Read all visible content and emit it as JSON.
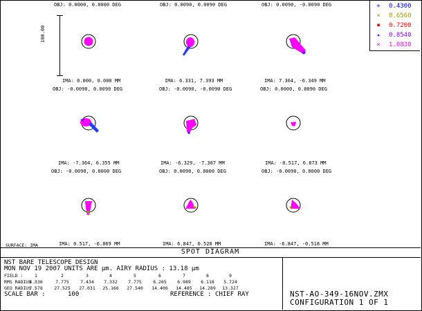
{
  "legend": {
    "entries": [
      {
        "marker": "+",
        "label": "0.4300",
        "color": "#0000ff"
      },
      {
        "marker": "×",
        "label": "0.6560",
        "color": "#9a9a00"
      },
      {
        "marker": "■",
        "label": "0.7200",
        "color": "#ff0000"
      },
      {
        "marker": "▲",
        "label": "0.8540",
        "color": "#8000ff"
      },
      {
        "marker": "×",
        "label": "1.0830",
        "color": "#ff00ff"
      }
    ]
  },
  "scale_bar_label": "100.00",
  "surface_label": "SURFACE: IMA",
  "fields": [
    {
      "obj": "OBJ: 0.0000, 0.0000 DEG",
      "ima": "IMA: 0.000, 0.000 MM",
      "spot": "round"
    },
    {
      "obj": "OBJ: 0.0090, 0.0090 DEG",
      "ima": "IMA: 6.331, 7.393 MM",
      "spot": "tail-sw"
    },
    {
      "obj": "OBJ: 0.0090, -0.0090 DEG",
      "ima": "IMA: 7.364, -6.349 MM",
      "spot": "tail-se"
    },
    {
      "obj": "OBJ: -0.0090, 0.0090 DEG",
      "ima": "IMA: -7.364, 6.355 MM",
      "spot": "tail-e"
    },
    {
      "obj": "OBJ: -0.0090, -0.0090 DEG",
      "ima": "IMA: -6.329, -7.387 MM",
      "spot": "tail-s"
    },
    {
      "obj": "OBJ: 0.0000, 0.0090 DEG",
      "ima": "IMA: -0.517, 6.873 MM",
      "spot": "small"
    },
    {
      "obj": "OBJ: -0.0090, 0.0000 DEG",
      "ima": "IMA: 0.517, -6.869 MM",
      "spot": "tall"
    },
    {
      "obj": "OBJ: 0.0090, 0.0000 DEG",
      "ima": "IMA: 6.847, 0.520 MM",
      "spot": "wedge-l"
    },
    {
      "obj": "OBJ: -0.0090, 0.0000 DEG",
      "ima": "IMA: -6.847, -0.518 MM",
      "spot": "wedge-r"
    }
  ],
  "diagram_title": "SPOT DIAGRAM",
  "info": {
    "line1": "NST BARE TELESCOPE DESIGN",
    "line2": "MON NOV 19 2007  UNITS ARE µm.   AIRY RADIUS : 13.18 µm",
    "field_label": "FIELD       :",
    "rms_label": "RMS RADIUS :",
    "geo_label": "GEO RADIUS :",
    "scale_label": "SCALE BAR   :",
    "field_numbers": [
      "1",
      "2",
      "3",
      "4",
      "5",
      "6",
      "7",
      "8",
      "9"
    ],
    "rms_values": [
      "4.336",
      "7.775",
      "7.434",
      "7.332",
      "7.775",
      "6.265",
      "6.989",
      "6.118",
      "5.724"
    ],
    "geo_values": [
      "7.578",
      "27.525",
      "27.031",
      "25.166",
      "27.540",
      "14.406",
      "14.485",
      "14.289",
      "13.327"
    ],
    "scale_value": "100",
    "reference": "REFERENCE   : CHIEF RAY"
  },
  "file_label": "NST-AO-349-16NOV.ZMX",
  "config_label": "CONFIGURATION  1  OF  1"
}
